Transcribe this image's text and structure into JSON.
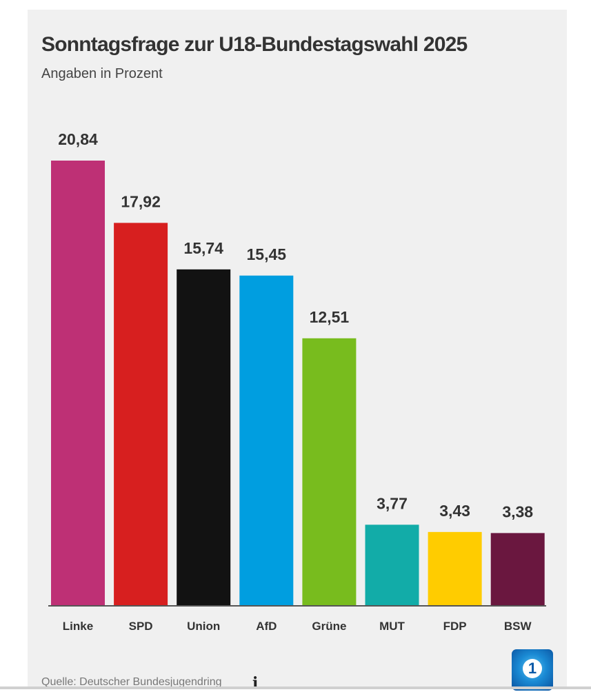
{
  "chart_data": {
    "type": "bar",
    "title": "Sonntagsfrage zur U18-Bundestagswahl 2025",
    "subtitle": "Angaben in Prozent",
    "categories": [
      "Linke",
      "SPD",
      "Union",
      "AfD",
      "Grüne",
      "MUT",
      "FDP",
      "BSW"
    ],
    "values": [
      20.84,
      17.92,
      15.74,
      15.45,
      12.51,
      3.77,
      3.43,
      3.38
    ],
    "value_labels": [
      "20,84",
      "17,92",
      "15,74",
      "15,45",
      "12,51",
      "3,77",
      "3,43",
      "3,38"
    ],
    "colors": [
      "#be3075",
      "#d71f1f",
      "#121212",
      "#009ee0",
      "#78bc1e",
      "#12aca8",
      "#ffcc00",
      "#6a173f"
    ],
    "ylim": [
      0,
      20.84
    ],
    "grid": false,
    "legend": "none"
  },
  "footer": {
    "source": "Quelle: Deutscher Bundesjugendring",
    "info_icon": "i",
    "logo": "1"
  }
}
